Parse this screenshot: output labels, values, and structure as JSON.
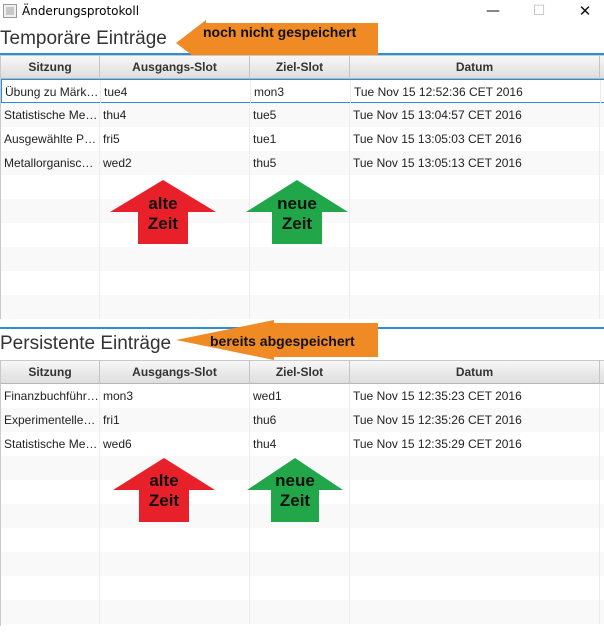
{
  "window": {
    "title": "Änderungsprotokoll",
    "min_symbol": "—",
    "max_symbol": "☐",
    "close_symbol": "✕"
  },
  "columns": [
    "Sitzung",
    "Ausgangs-Slot",
    "Ziel-Slot",
    "Datum"
  ],
  "temporary": {
    "title": "Temporäre Einträge",
    "callout": "noch nicht gespeichert",
    "rows": [
      [
        "Übung zu Märk…",
        "tue4",
        "mon3",
        "Tue Nov 15 12:52:36 CET 2016"
      ],
      [
        "Statistische Met…",
        "thu4",
        "tue5",
        "Tue Nov 15 13:04:57 CET 2016"
      ],
      [
        "Ausgewählte Pr…",
        "fri5",
        "tue1",
        "Tue Nov 15 13:05:03 CET 2016"
      ],
      [
        "Metallorganisc…",
        "wed2",
        "thu5",
        "Tue Nov 15 13:05:13 CET 2016"
      ]
    ],
    "old_time_label": [
      "alte",
      "Zeit"
    ],
    "new_time_label": [
      "neue",
      "Zeit"
    ]
  },
  "persistent": {
    "title": "Persistente Einträge",
    "callout": "bereits abgespeichert",
    "rows": [
      [
        "Finanzbuchführ…",
        "mon3",
        "wed1",
        "Tue Nov 15 12:35:23 CET 2016"
      ],
      [
        "Experimentelles…",
        "fri1",
        "thu6",
        "Tue Nov 15 12:35:26 CET 2016"
      ],
      [
        "Statistische Met…",
        "wed6",
        "thu4",
        "Tue Nov 15 12:35:29 CET 2016"
      ]
    ],
    "old_time_label": [
      "alte",
      "Zeit"
    ],
    "new_time_label": [
      "neue",
      "Zeit"
    ]
  },
  "colors": {
    "accent": "#2b8fd8",
    "callout_orange": "#f08a24",
    "old_red": "#e8202a",
    "new_green": "#22a64a"
  }
}
